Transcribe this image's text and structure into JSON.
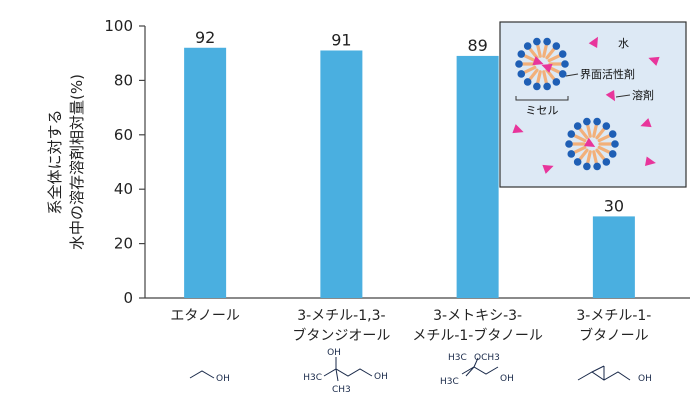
{
  "chart_data": {
    "type": "bar",
    "ylabel_lines": [
      "系全体に対する",
      "水中の溶存溶剤相対量(%)"
    ],
    "ylim": [
      0,
      100
    ],
    "yticks": [
      0,
      20,
      40,
      60,
      80,
      100
    ],
    "categories": [
      [
        "エタノール"
      ],
      [
        "3-メチル-1,3-",
        "ブタンジオール"
      ],
      [
        "3-メトキシ-3-",
        "メチル-1-ブタノール"
      ],
      [
        "3-メチル-1-",
        "ブタノール"
      ]
    ],
    "values": [
      92,
      91,
      89,
      30
    ],
    "bar_color": "#4aafe0",
    "grid": false
  },
  "inset": {
    "labels": {
      "water": "水",
      "surfactant": "界面活性剤",
      "solvent": "溶剤",
      "micelle": "ミセル"
    },
    "colors": {
      "background": "#dde9f5",
      "head": "#1f5fb5",
      "tail": "#f2b07a",
      "solvent": "#e8359b"
    }
  },
  "structures": [
    {
      "name": "ethanol",
      "labels": [
        "OH"
      ]
    },
    {
      "name": "3-methyl-1,3-butanediol",
      "labels": [
        "OH",
        "H3C",
        "CH3",
        "OH"
      ]
    },
    {
      "name": "3-methoxy-3-methyl-1-butanol",
      "labels": [
        "H3C",
        "OCH3",
        "H3C",
        "OH"
      ]
    },
    {
      "name": "3-methyl-1-butanol",
      "labels": [
        "OH"
      ]
    }
  ]
}
